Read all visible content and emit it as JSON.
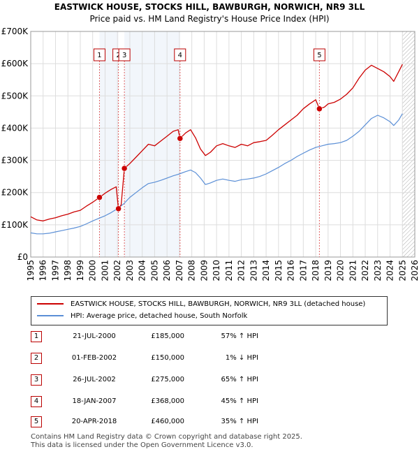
{
  "title": "EASTWICK HOUSE, STOCKS HILL, BAWBURGH, NORWICH, NR9 3LL",
  "subtitle": "Price paid vs. HM Land Registry's House Price Index (HPI)",
  "colors": {
    "property": "#cc0000",
    "hpi": "#5b8fd6",
    "marker_line": "#e06060",
    "shade": "#e8eef8"
  },
  "legend": {
    "property": "EASTWICK HOUSE, STOCKS HILL, BAWBURGH, NORWICH, NR9 3LL (detached house)",
    "hpi": "HPI: Average price, detached house, South Norfolk"
  },
  "sales": [
    {
      "num": "1",
      "date": "21-JUL-2000",
      "price": "£185,000",
      "hpi": "57% ↑ HPI"
    },
    {
      "num": "2",
      "date": "01-FEB-2002",
      "price": "£150,000",
      "hpi": "1% ↓ HPI"
    },
    {
      "num": "3",
      "date": "26-JUL-2002",
      "price": "£275,000",
      "hpi": "65% ↑ HPI"
    },
    {
      "num": "4",
      "date": "18-JAN-2007",
      "price": "£368,000",
      "hpi": "45% ↑ HPI"
    },
    {
      "num": "5",
      "date": "20-APR-2018",
      "price": "£460,000",
      "hpi": "35% ↑ HPI"
    }
  ],
  "footer": {
    "line1": "Contains HM Land Registry data © Crown copyright and database right 2025.",
    "line2": "This data is licensed under the Open Government Licence v3.0."
  },
  "chart_data": {
    "type": "line",
    "xlim": [
      1995,
      2026
    ],
    "ylim": [
      0,
      700000
    ],
    "yticks": [
      0,
      100000,
      200000,
      300000,
      400000,
      500000,
      600000,
      700000
    ],
    "ytick_labels": [
      "£0",
      "£100K",
      "£200K",
      "£300K",
      "£400K",
      "£500K",
      "£600K",
      "£700K"
    ],
    "xticks": [
      1995,
      1996,
      1997,
      1998,
      1999,
      2000,
      2001,
      2002,
      2003,
      2004,
      2005,
      2006,
      2007,
      2008,
      2009,
      2010,
      2011,
      2012,
      2013,
      2014,
      2015,
      2016,
      2017,
      2018,
      2019,
      2020,
      2021,
      2022,
      2023,
      2024,
      2025,
      2026
    ],
    "grid": true,
    "forecast_start": 2025.0,
    "series": [
      {
        "name": "EASTWICK HOUSE, STOCKS HILL, BAWBURGH, NORWICH, NR9 3LL (detached house)",
        "points": [
          [
            1995.0,
            125000
          ],
          [
            1995.5,
            115000
          ],
          [
            1996.0,
            112000
          ],
          [
            1996.5,
            118000
          ],
          [
            1997.0,
            122000
          ],
          [
            1997.5,
            128000
          ],
          [
            1998.0,
            133000
          ],
          [
            1998.5,
            140000
          ],
          [
            1999.0,
            145000
          ],
          [
            1999.5,
            158000
          ],
          [
            2000.0,
            170000
          ],
          [
            2000.55,
            185000
          ],
          [
            2001.0,
            198000
          ],
          [
            2001.5,
            210000
          ],
          [
            2001.9,
            218000
          ],
          [
            2002.08,
            150000
          ],
          [
            2002.3,
            162000
          ],
          [
            2002.56,
            275000
          ],
          [
            2003.0,
            290000
          ],
          [
            2003.5,
            310000
          ],
          [
            2004.0,
            330000
          ],
          [
            2004.5,
            350000
          ],
          [
            2005.0,
            345000
          ],
          [
            2005.5,
            360000
          ],
          [
            2006.0,
            375000
          ],
          [
            2006.5,
            390000
          ],
          [
            2006.9,
            395000
          ],
          [
            2007.05,
            368000
          ],
          [
            2007.5,
            385000
          ],
          [
            2007.9,
            395000
          ],
          [
            2008.3,
            370000
          ],
          [
            2008.7,
            335000
          ],
          [
            2009.1,
            315000
          ],
          [
            2009.5,
            325000
          ],
          [
            2010.0,
            345000
          ],
          [
            2010.5,
            352000
          ],
          [
            2011.0,
            345000
          ],
          [
            2011.5,
            340000
          ],
          [
            2012.0,
            350000
          ],
          [
            2012.5,
            345000
          ],
          [
            2013.0,
            355000
          ],
          [
            2013.5,
            358000
          ],
          [
            2014.0,
            362000
          ],
          [
            2014.5,
            378000
          ],
          [
            2015.0,
            395000
          ],
          [
            2015.5,
            410000
          ],
          [
            2016.0,
            425000
          ],
          [
            2016.5,
            440000
          ],
          [
            2017.0,
            460000
          ],
          [
            2017.5,
            475000
          ],
          [
            2018.0,
            488000
          ],
          [
            2018.3,
            460000
          ],
          [
            2018.7,
            465000
          ],
          [
            2019.0,
            475000
          ],
          [
            2019.5,
            480000
          ],
          [
            2020.0,
            490000
          ],
          [
            2020.5,
            505000
          ],
          [
            2021.0,
            525000
          ],
          [
            2021.5,
            555000
          ],
          [
            2022.0,
            580000
          ],
          [
            2022.5,
            595000
          ],
          [
            2023.0,
            585000
          ],
          [
            2023.5,
            575000
          ],
          [
            2024.0,
            560000
          ],
          [
            2024.3,
            545000
          ],
          [
            2024.7,
            575000
          ],
          [
            2025.0,
            598000
          ]
        ]
      },
      {
        "name": "HPI: Average price, detached house, South Norfolk",
        "points": [
          [
            1995.0,
            75000
          ],
          [
            1995.5,
            72000
          ],
          [
            1996.0,
            72000
          ],
          [
            1996.5,
            74000
          ],
          [
            1997.0,
            78000
          ],
          [
            1997.5,
            82000
          ],
          [
            1998.0,
            86000
          ],
          [
            1998.5,
            90000
          ],
          [
            1999.0,
            95000
          ],
          [
            1999.5,
            103000
          ],
          [
            2000.0,
            112000
          ],
          [
            2000.5,
            120000
          ],
          [
            2001.0,
            128000
          ],
          [
            2001.5,
            138000
          ],
          [
            2002.0,
            150000
          ],
          [
            2002.5,
            165000
          ],
          [
            2003.0,
            185000
          ],
          [
            2003.5,
            200000
          ],
          [
            2004.0,
            215000
          ],
          [
            2004.5,
            228000
          ],
          [
            2005.0,
            232000
          ],
          [
            2005.5,
            238000
          ],
          [
            2006.0,
            245000
          ],
          [
            2006.5,
            252000
          ],
          [
            2007.0,
            258000
          ],
          [
            2007.5,
            265000
          ],
          [
            2007.9,
            270000
          ],
          [
            2008.3,
            262000
          ],
          [
            2008.7,
            245000
          ],
          [
            2009.1,
            225000
          ],
          [
            2009.5,
            230000
          ],
          [
            2010.0,
            238000
          ],
          [
            2010.5,
            242000
          ],
          [
            2011.0,
            238000
          ],
          [
            2011.5,
            235000
          ],
          [
            2012.0,
            240000
          ],
          [
            2012.5,
            242000
          ],
          [
            2013.0,
            245000
          ],
          [
            2013.5,
            250000
          ],
          [
            2014.0,
            258000
          ],
          [
            2014.5,
            268000
          ],
          [
            2015.0,
            278000
          ],
          [
            2015.5,
            290000
          ],
          [
            2016.0,
            300000
          ],
          [
            2016.5,
            312000
          ],
          [
            2017.0,
            322000
          ],
          [
            2017.5,
            332000
          ],
          [
            2018.0,
            340000
          ],
          [
            2018.5,
            345000
          ],
          [
            2019.0,
            350000
          ],
          [
            2019.5,
            352000
          ],
          [
            2020.0,
            355000
          ],
          [
            2020.5,
            362000
          ],
          [
            2021.0,
            375000
          ],
          [
            2021.5,
            390000
          ],
          [
            2022.0,
            410000
          ],
          [
            2022.5,
            430000
          ],
          [
            2023.0,
            440000
          ],
          [
            2023.5,
            432000
          ],
          [
            2024.0,
            420000
          ],
          [
            2024.3,
            408000
          ],
          [
            2024.7,
            425000
          ],
          [
            2025.0,
            445000
          ]
        ]
      }
    ],
    "markers": [
      {
        "label": "1",
        "x": 2000.55,
        "y": 185000
      },
      {
        "label": "2",
        "x": 2002.08,
        "y": 150000
      },
      {
        "label": "3",
        "x": 2002.56,
        "y": 275000
      },
      {
        "label": "4",
        "x": 2007.05,
        "y": 368000
      },
      {
        "label": "5",
        "x": 2018.3,
        "y": 460000
      }
    ]
  }
}
